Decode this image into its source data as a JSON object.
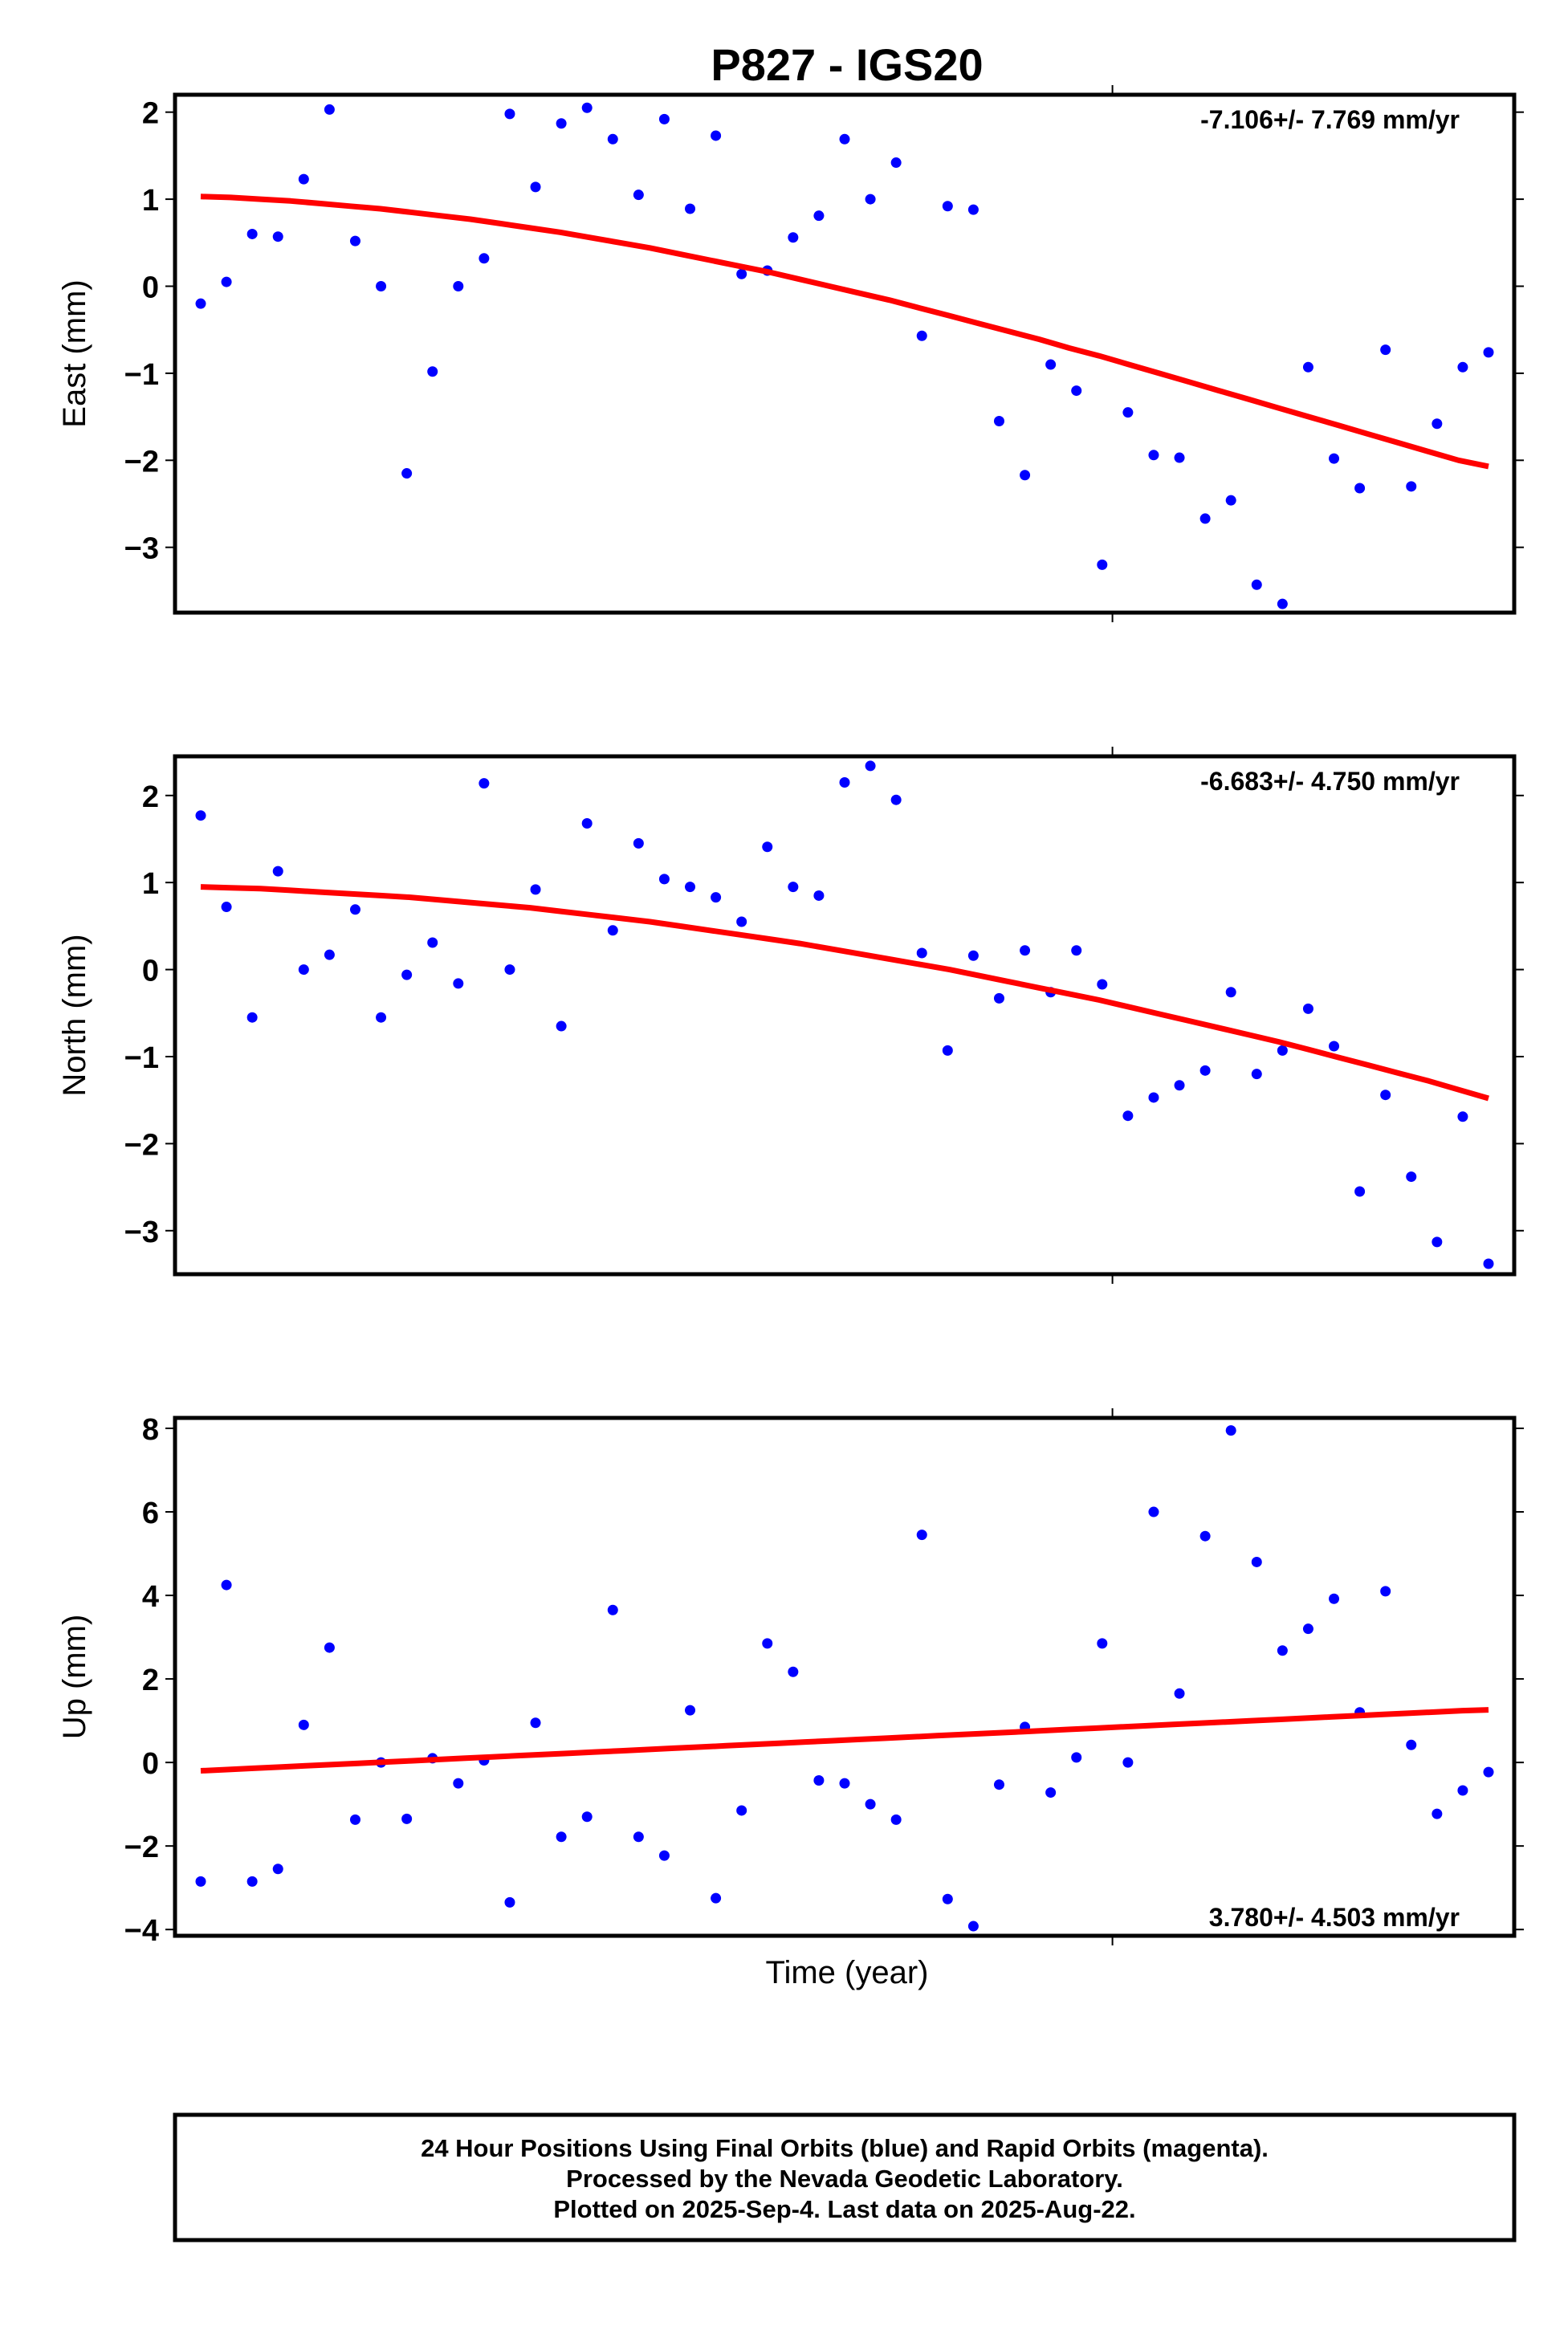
{
  "title": "P827 - IGS20",
  "xlabel": "Time (year)",
  "footer": {
    "line1": "24 Hour Positions Using Final Orbits (blue) and Rapid Orbits (magenta).",
    "line2": "Processed by the Nevada Geodetic Laboratory.",
    "line3": "Plotted on 2025-Sep-4. Last data on 2025-Aug-22."
  },
  "colors": {
    "points": "#0000ff",
    "fit": "#ff0000",
    "frame": "#000000"
  },
  "chart_data": [
    {
      "type": "scatter",
      "ylabel": "East (mm)",
      "rate_text": "-7.106+/- 7.769 mm/yr",
      "rate_position": "top-right",
      "ylim": [
        -3.75,
        2.2
      ],
      "yticks": [
        -3,
        -2,
        -1,
        0,
        1,
        2
      ],
      "xlim": [
        0,
        52
      ],
      "x": [
        0,
        1,
        2,
        3,
        4,
        5,
        6,
        7,
        8,
        9,
        10,
        11,
        12,
        13,
        14,
        15,
        16,
        17,
        18,
        19,
        20,
        21,
        22,
        23,
        24,
        25,
        26,
        27,
        28,
        29,
        30,
        31,
        32,
        33,
        34,
        35,
        36,
        37,
        38,
        39,
        40,
        41,
        42,
        43,
        44,
        45,
        46,
        47,
        48,
        49,
        50
      ],
      "values": [
        -0.2,
        0.05,
        0.6,
        0.57,
        1.23,
        2.03,
        0.52,
        0.0,
        -2.15,
        -0.98,
        0.0,
        0.32,
        1.98,
        1.14,
        1.87,
        2.05,
        1.69,
        1.05,
        1.92,
        0.89,
        1.73,
        0.14,
        0.18,
        0.56,
        0.81,
        1.69,
        1.0,
        1.42,
        -0.57,
        0.92,
        0.88,
        -1.55,
        -2.17,
        -0.9,
        -1.2,
        -3.2,
        -1.45,
        -1.94,
        -1.97,
        -2.67,
        -2.46,
        -3.43,
        -3.65,
        -0.93,
        -1.98,
        -2.32,
        -0.73,
        -2.3,
        -1.58,
        -0.93,
        -0.76
      ],
      "fit": [
        1.03,
        1.02,
        1.0,
        0.98,
        0.95,
        0.92,
        0.89,
        0.85,
        0.81,
        0.77,
        0.72,
        0.67,
        0.62,
        0.56,
        0.5,
        0.44,
        0.37,
        0.3,
        0.23,
        0.16,
        0.08,
        0.0,
        -0.08,
        -0.16,
        -0.25,
        -0.34,
        -0.43,
        -0.52,
        -0.61,
        -0.71,
        -0.8,
        -0.9,
        -1.0,
        -1.1,
        -1.2,
        -1.3,
        -1.4,
        -1.5,
        -1.6,
        -1.7,
        -1.8,
        -1.9,
        -2.0,
        -2.07
      ]
    },
    {
      "type": "scatter",
      "ylabel": "North (mm)",
      "rate_text": "-6.683+/- 4.750 mm/yr",
      "rate_position": "top-right",
      "ylim": [
        -3.5,
        2.45
      ],
      "yticks": [
        -3,
        -2,
        -1,
        0,
        1,
        2
      ],
      "xlim": [
        0,
        52
      ],
      "x": [
        0,
        1,
        2,
        3,
        4,
        5,
        6,
        7,
        8,
        9,
        10,
        11,
        12,
        13,
        14,
        15,
        16,
        17,
        18,
        19,
        20,
        21,
        22,
        23,
        24,
        25,
        26,
        27,
        28,
        29,
        30,
        31,
        32,
        33,
        34,
        35,
        36,
        37,
        38,
        39,
        40,
        41,
        42,
        43,
        44,
        45,
        46,
        47,
        48,
        49,
        50
      ],
      "values": [
        1.77,
        0.72,
        -0.55,
        1.13,
        0.0,
        0.17,
        0.69,
        -0.55,
        -0.06,
        0.31,
        -0.16,
        2.14,
        0.0,
        0.92,
        -0.65,
        1.68,
        0.45,
        1.45,
        1.04,
        0.95,
        0.83,
        0.55,
        1.41,
        0.95,
        0.85,
        2.15,
        2.34,
        1.95,
        0.19,
        -0.93,
        0.16,
        -0.33,
        0.22,
        -0.26,
        0.22,
        -0.17,
        -1.68,
        -1.47,
        -1.33,
        -1.16,
        -0.26,
        -1.2,
        -0.93,
        -0.45,
        -0.88,
        -2.55,
        -1.44,
        -2.38,
        -3.13,
        -1.69,
        -3.38
      ],
      "fit": [
        0.95,
        0.94,
        0.93,
        0.91,
        0.89,
        0.87,
        0.85,
        0.83,
        0.8,
        0.77,
        0.74,
        0.71,
        0.67,
        0.63,
        0.59,
        0.55,
        0.5,
        0.45,
        0.4,
        0.35,
        0.3,
        0.24,
        0.18,
        0.12,
        0.06,
        0.0,
        -0.07,
        -0.14,
        -0.21,
        -0.28,
        -0.35,
        -0.43,
        -0.51,
        -0.59,
        -0.67,
        -0.75,
        -0.83,
        -0.92,
        -1.01,
        -1.1,
        -1.19,
        -1.28,
        -1.38,
        -1.48
      ]
    },
    {
      "type": "scatter",
      "ylabel": "Up (mm)",
      "rate_text": "3.780+/- 4.503 mm/yr",
      "rate_position": "bottom-right",
      "ylim": [
        -4.15,
        8.25
      ],
      "yticks": [
        -4,
        -2,
        0,
        2,
        4,
        6,
        8
      ],
      "xlim": [
        0,
        52
      ],
      "x": [
        0,
        1,
        2,
        3,
        4,
        5,
        6,
        7,
        8,
        9,
        10,
        11,
        12,
        13,
        14,
        15,
        16,
        17,
        18,
        19,
        20,
        21,
        22,
        23,
        24,
        25,
        26,
        27,
        28,
        29,
        30,
        31,
        32,
        33,
        34,
        35,
        36,
        37,
        38,
        39,
        40,
        41,
        42,
        43,
        44,
        45,
        46,
        47,
        48,
        49,
        50
      ],
      "values": [
        -2.85,
        4.25,
        -2.85,
        -2.55,
        0.9,
        2.75,
        -1.37,
        0.0,
        -1.35,
        0.1,
        -0.5,
        0.05,
        -3.35,
        0.95,
        -1.78,
        -1.3,
        3.65,
        -1.78,
        -2.23,
        1.25,
        -3.25,
        -1.15,
        2.85,
        2.17,
        -0.43,
        -0.5,
        -1.0,
        -1.37,
        5.45,
        -3.27,
        -3.92,
        -0.53,
        0.85,
        -0.72,
        0.12,
        2.85,
        0.0,
        6.0,
        1.65,
        5.42,
        7.95,
        4.8,
        2.68,
        3.2,
        3.92,
        1.2,
        4.1,
        0.42,
        -1.23,
        -0.67,
        -0.23
      ],
      "fit": [
        -0.2,
        -0.17,
        -0.14,
        -0.11,
        -0.08,
        -0.05,
        -0.02,
        0.01,
        0.04,
        0.07,
        0.1,
        0.13,
        0.16,
        0.19,
        0.22,
        0.25,
        0.28,
        0.31,
        0.34,
        0.37,
        0.4,
        0.43,
        0.46,
        0.49,
        0.52,
        0.55,
        0.58,
        0.61,
        0.64,
        0.67,
        0.7,
        0.73,
        0.76,
        0.79,
        0.82,
        0.85,
        0.88,
        0.91,
        0.94,
        0.97,
        1.0,
        1.03,
        1.06,
        1.09,
        1.12,
        1.15,
        1.18,
        1.21,
        1.24,
        1.26
      ]
    }
  ]
}
